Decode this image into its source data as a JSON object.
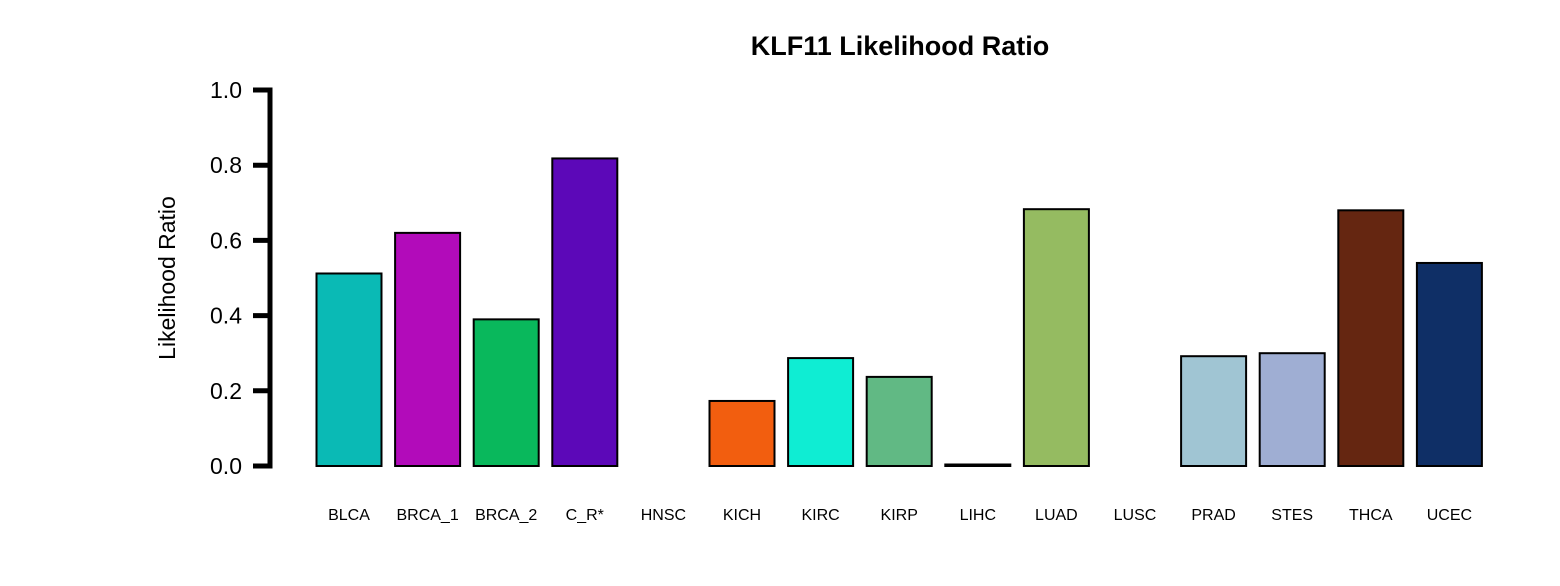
{
  "chart_data": {
    "type": "bar",
    "title": "KLF11 Likelihood Ratio",
    "xlabel": "",
    "ylabel": "Likelihood Ratio",
    "ylim": [
      0,
      1.0
    ],
    "yticks": [
      "0.0",
      "0.2",
      "0.4",
      "0.6",
      "0.8",
      "1.0"
    ],
    "ytick_values": [
      0,
      0.2,
      0.4,
      0.6,
      0.8,
      1.0
    ],
    "grid": false,
    "categories": [
      "BLCA",
      "BRCA_1",
      "BRCA_2",
      "C_R*",
      "HNSC",
      "KICH",
      "KIRC",
      "KIRP",
      "LIHC",
      "LUAD",
      "LUSC",
      "PRAD",
      "STES",
      "THCA",
      "UCEC"
    ],
    "values": [
      0.512,
      0.62,
      0.39,
      0.818,
      0.0,
      0.173,
      0.287,
      0.237,
      0.004,
      0.683,
      0.0,
      0.292,
      0.3,
      0.68,
      0.54
    ],
    "colors": [
      "#0ABAB5",
      "#B20BBA",
      "#09B85C",
      "#5C08B8",
      "#000000",
      "#F25E0F",
      "#0FEDD3",
      "#61B984",
      "#000000",
      "#95BB61",
      "#000000",
      "#A0C5D3",
      "#9FAED3",
      "#652611",
      "#0F2F66"
    ],
    "bar_border_color": "#000000"
  }
}
